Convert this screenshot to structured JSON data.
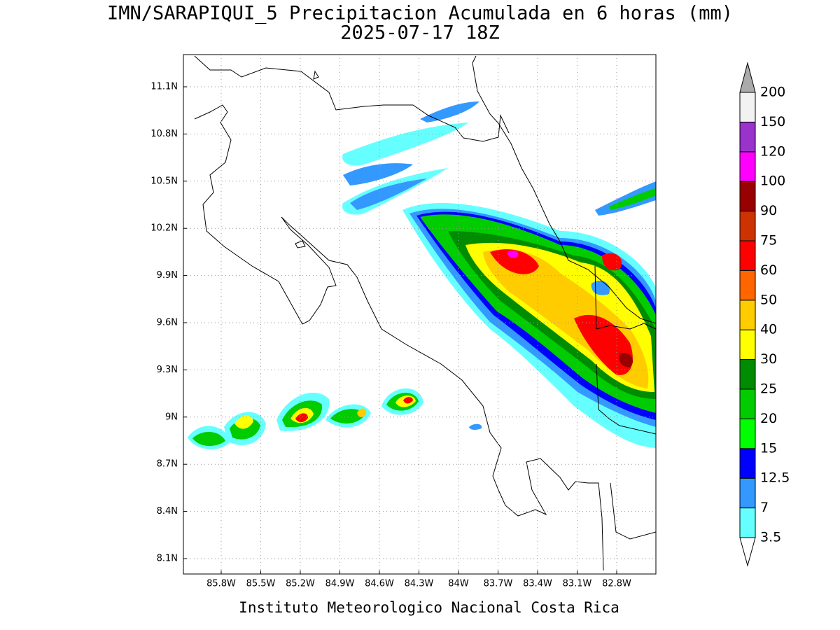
{
  "map": {
    "title": "IMN/SARAPIQUI_5 Precipitacion Acumulada en 6 horas (mm)",
    "subtitle": "2025-07-17 18Z",
    "credit": "Instituto Meteorologico Nacional Costa Rica",
    "lon_ticks": [
      "85.8W",
      "85.5W",
      "85.2W",
      "84.9W",
      "84.6W",
      "84.3W",
      "84W",
      "83.7W",
      "83.4W",
      "83.1W",
      "82.8W"
    ],
    "lat_ticks": [
      "11.1N",
      "10.8N",
      "10.5N",
      "10.2N",
      "9.9N",
      "9.6N",
      "9.3N",
      "9N",
      "8.7N",
      "8.4N",
      "8.1N"
    ],
    "colorbar": {
      "levels": [
        3.5,
        7,
        12.5,
        15,
        20,
        25,
        30,
        40,
        50,
        60,
        75,
        90,
        100,
        120,
        150,
        200
      ],
      "colors": [
        "#66ffff",
        "#3399ff",
        "#0000ff",
        "#00ff00",
        "#00cc00",
        "#008c00",
        "#ffff00",
        "#ffcc00",
        "#ff6600",
        "#ff0000",
        "#cc3300",
        "#990000",
        "#ff00ff",
        "#9933cc",
        "#f2f2f2"
      ],
      "under_color": "#ffffff",
      "over_color": "#aaaaaa"
    }
  }
}
